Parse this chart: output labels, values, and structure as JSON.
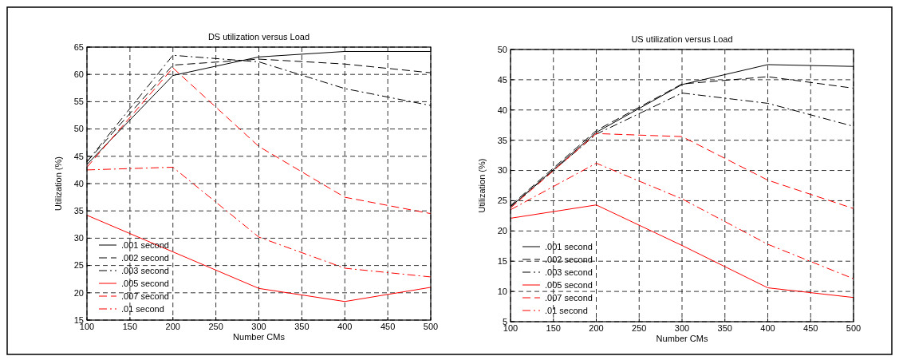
{
  "chart_data": [
    {
      "type": "line",
      "title": "DS utilization versus Load",
      "xlabel": "Number CMs",
      "ylabel": "Utilization (%)",
      "x": [
        100,
        200,
        300,
        400,
        500
      ],
      "xlim": [
        100,
        500
      ],
      "xticks": [
        100,
        150,
        200,
        250,
        300,
        350,
        400,
        450,
        500
      ],
      "ylim": [
        15,
        65
      ],
      "yticks": [
        15,
        20,
        25,
        30,
        35,
        40,
        45,
        50,
        55,
        60,
        65
      ],
      "grid": true,
      "legend": "bottom left",
      "marker": "none",
      "series": [
        {
          "name": ".001 second",
          "color": "#000000",
          "line_style": "solid",
          "values": [
            43.5,
            59.8,
            63.2,
            64.2,
            64.2
          ]
        },
        {
          "name": ".002 second",
          "color": "#000000",
          "line_style": "dashed",
          "values": [
            44,
            61.7,
            62.8,
            61.9,
            60.3
          ]
        },
        {
          "name": ".003 second",
          "color": "#000000",
          "line_style": "dotted",
          "values": [
            44,
            63.5,
            62.3,
            57.4,
            54.3
          ]
        },
        {
          "name": ".005 second",
          "color": "#ff0000",
          "line_style": "solid",
          "values": [
            34.2,
            27.5,
            20.8,
            18.4,
            21
          ]
        },
        {
          "name": ".007 second",
          "color": "#ff0000",
          "line_style": "dashed",
          "values": [
            43,
            61.2,
            46.8,
            37.5,
            34.5
          ]
        },
        {
          "name": ".01 second",
          "color": "#ff0000",
          "line_style": "dotted",
          "values": [
            42.5,
            43,
            30.2,
            24.5,
            22.9
          ]
        }
      ]
    },
    {
      "type": "line",
      "title": "US utilization versus Load",
      "xlabel": "Number CMs",
      "ylabel": "Utilization (%)",
      "x": [
        100,
        200,
        300,
        400,
        500
      ],
      "xlim": [
        100,
        500
      ],
      "xticks": [
        100,
        150,
        200,
        250,
        300,
        350,
        400,
        450,
        500
      ],
      "ylim": [
        5,
        50
      ],
      "yticks": [
        5,
        10,
        15,
        20,
        25,
        30,
        35,
        40,
        45,
        50
      ],
      "grid": true,
      "legend": "bottom left",
      "marker": "none",
      "series": [
        {
          "name": ".001 second",
          "color": "#000000",
          "line_style": "solid",
          "values": [
            24,
            36.3,
            44.2,
            47.5,
            47.2
          ]
        },
        {
          "name": ".002 second",
          "color": "#000000",
          "line_style": "dashed",
          "values": [
            24.2,
            36.6,
            44.3,
            45.5,
            43.6
          ]
        },
        {
          "name": ".003 second",
          "color": "#000000",
          "line_style": "dotted",
          "values": [
            24,
            36,
            42.8,
            41.1,
            37.3
          ]
        },
        {
          "name": ".005 second",
          "color": "#ff0000",
          "line_style": "solid",
          "values": [
            22.1,
            24.3,
            17.6,
            10.6,
            9
          ]
        },
        {
          "name": ".007 second",
          "color": "#ff0000",
          "line_style": "dashed",
          "values": [
            23.8,
            36.1,
            35.6,
            28.4,
            23.7
          ]
        },
        {
          "name": ".01 second",
          "color": "#ff0000",
          "line_style": "dotted",
          "values": [
            23.5,
            31.2,
            25.3,
            17.8,
            12.1
          ]
        }
      ]
    }
  ]
}
